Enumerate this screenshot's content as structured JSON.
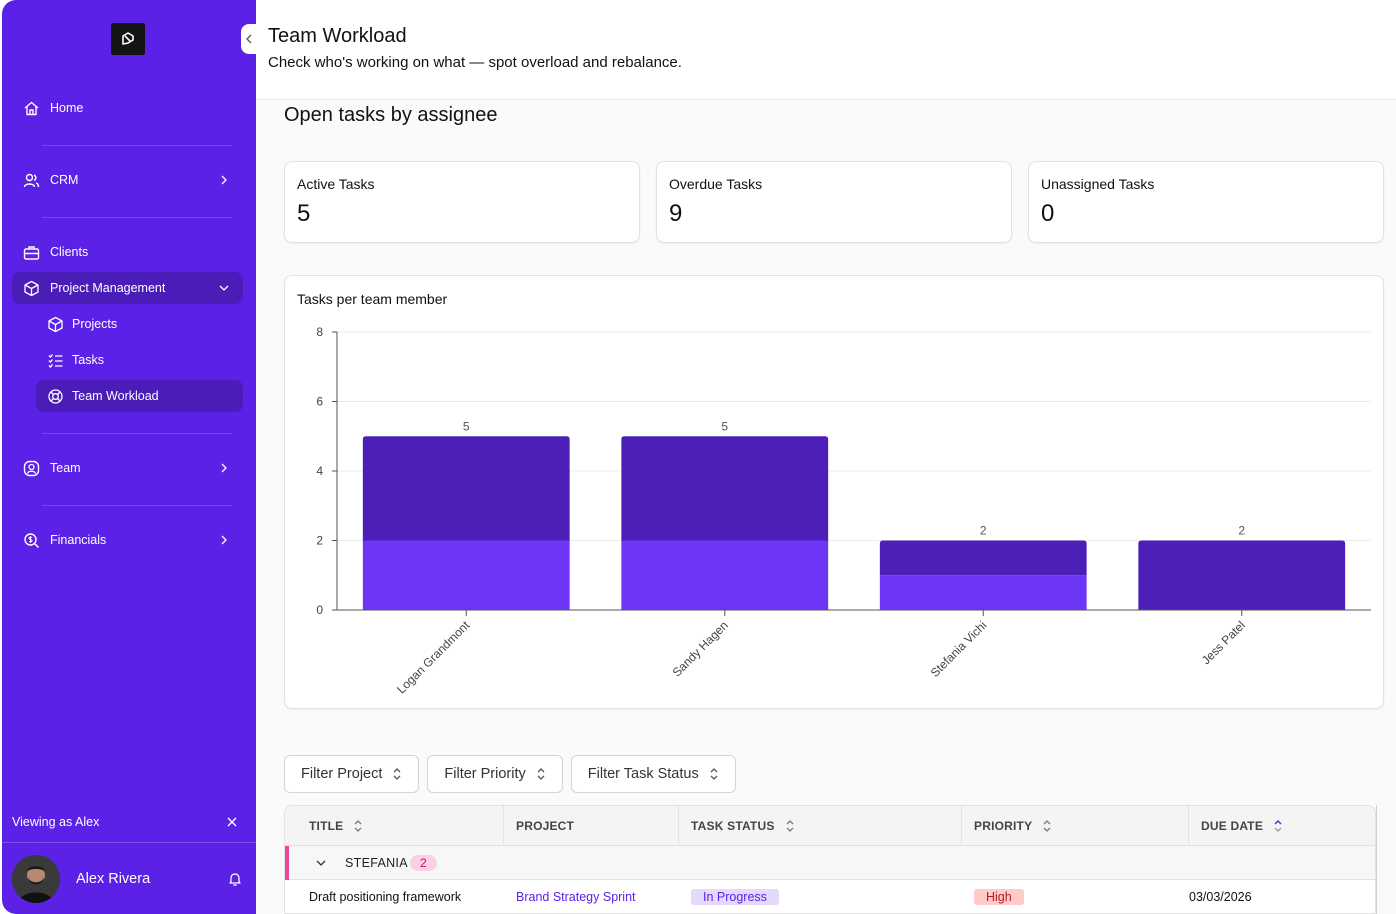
{
  "sidebar": {
    "collapse_label": "‹",
    "nav": [
      {
        "label": "Home",
        "icon": "home-icon"
      },
      {
        "label": "CRM",
        "icon": "users-icon"
      },
      {
        "label": "Clients",
        "icon": "briefcase-icon"
      },
      {
        "label": "Project Management",
        "icon": "box-icon"
      },
      {
        "label": "Team",
        "icon": "user-circle-icon"
      },
      {
        "label": "Financials",
        "icon": "search-dollar-icon"
      }
    ],
    "sub_nav": [
      {
        "label": "Projects",
        "icon": "box-icon"
      },
      {
        "label": "Tasks",
        "icon": "list-check-icon"
      },
      {
        "label": "Team Workload",
        "icon": "lifebuoy-icon"
      }
    ],
    "viewing_as": "Viewing as Alex",
    "user_name": "Alex Rivera"
  },
  "header": {
    "title": "Team Workload",
    "subtitle": "Check who's working on what — spot overload and rebalance."
  },
  "main": {
    "section_title": "Open tasks by assignee",
    "cards": [
      {
        "label": "Active Tasks",
        "value": "5"
      },
      {
        "label": "Overdue Tasks",
        "value": "9"
      },
      {
        "label": "Unassigned Tasks",
        "value": "0"
      }
    ],
    "chart_title": "Tasks per team member"
  },
  "chart_data": {
    "type": "bar",
    "title": "Tasks per team member",
    "categories": [
      "Logan Grandmont",
      "Sandy Hagen",
      "Stefania Vichi",
      "Jess Patel"
    ],
    "series": [
      {
        "values": [
          2,
          2,
          1,
          0
        ],
        "color": "#6d35f5"
      },
      {
        "values": [
          3,
          3,
          1,
          2
        ],
        "color": "#4c20b8"
      }
    ],
    "totals": [
      5,
      5,
      2,
      2
    ],
    "yticks": [
      0,
      2,
      4,
      6,
      8
    ],
    "ylim": [
      0,
      8
    ],
    "grid": true,
    "stacked": true
  },
  "filters": [
    "Filter Project",
    "Filter Priority",
    "Filter Task Status"
  ],
  "table": {
    "columns": [
      "TITLE",
      "PROJECT",
      "TASK STATUS",
      "PRIORITY",
      "DUE DATE"
    ],
    "group": {
      "name": "STEFANIA",
      "count": "2"
    },
    "rows": [
      {
        "title": "Draft positioning framework",
        "project": "Brand Strategy Sprint",
        "status": "In Progress",
        "priority": "High",
        "due": "03/03/2026"
      }
    ]
  },
  "colors": {
    "sidebar": "#5b21e6",
    "active_nav": "#4a1cb8",
    "bar_dark": "#4c20b8",
    "bar_light": "#6d35f5",
    "group_marker": "#ec4899"
  }
}
